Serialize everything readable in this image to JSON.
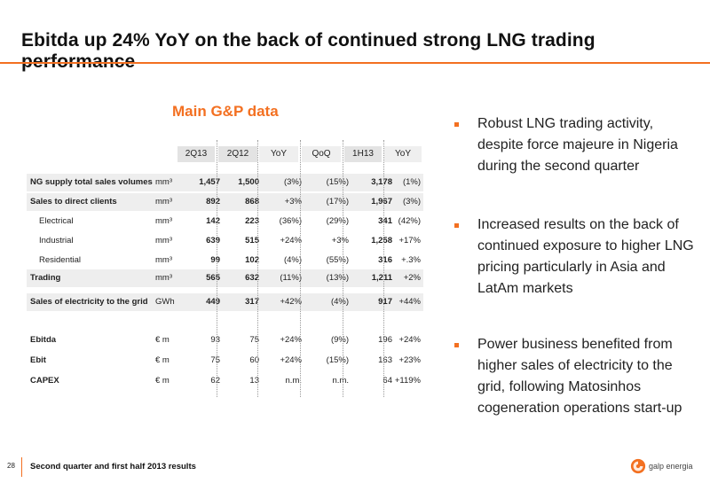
{
  "title": "Ebitda up 24% YoY on the back of continued strong LNG trading performance",
  "table": {
    "heading": "Main G&P data",
    "columns": [
      "2Q13",
      "2Q12",
      "YoY",
      "QoQ",
      "1H13",
      "YoY"
    ],
    "rows": [
      {
        "label": "NG supply total sales volumes",
        "unit": "mm³",
        "v": [
          "1,457",
          "1,500",
          "(3%)",
          "(15%)",
          "3,178",
          "(1%)"
        ]
      },
      {
        "label": "Sales to direct clients",
        "unit": "mm³",
        "v": [
          "892",
          "868",
          "+3%",
          "(17%)",
          "1,967",
          "(3%)"
        ]
      },
      {
        "label": "Electrical",
        "unit": "mm³",
        "v": [
          "142",
          "223",
          "(36%)",
          "(29%)",
          "341",
          "(42%)"
        ]
      },
      {
        "label": "Industrial",
        "unit": "mm³",
        "v": [
          "639",
          "515",
          "+24%",
          "+3%",
          "1,258",
          "+17%"
        ]
      },
      {
        "label": "Residential",
        "unit": "mm³",
        "v": [
          "99",
          "102",
          "(4%)",
          "(55%)",
          "316",
          "+.3%"
        ]
      },
      {
        "label": "Trading",
        "unit": "mm³",
        "v": [
          "565",
          "632",
          "(11%)",
          "(13%)",
          "1,211",
          "+2%"
        ]
      },
      {
        "label": "Sales of electricity to the grid",
        "unit": "GWh",
        "v": [
          "449",
          "317",
          "+42%",
          "(4%)",
          "917",
          "+44%"
        ]
      },
      {
        "label": "Ebitda",
        "unit": "€ m",
        "v": [
          "93",
          "75",
          "+24%",
          "(9%)",
          "196",
          "+24%"
        ]
      },
      {
        "label": "Ebit",
        "unit": "€ m",
        "v": [
          "75",
          "60",
          "+24%",
          "(15%)",
          "163",
          "+23%"
        ]
      },
      {
        "label": "CAPEX",
        "unit": "€ m",
        "v": [
          "62",
          "13",
          "n.m.",
          "n.m.",
          "64",
          "+119%"
        ]
      }
    ]
  },
  "bullets": [
    "Robust LNG trading activity, despite force majeure in Nigeria during the second quarter",
    "Increased results on the back of continued exposure to higher LNG pricing particularly in Asia and LatAm markets",
    "Power business benefited from higher sales of electricity to the grid, following Matosinhos cogeneration operations start-up"
  ],
  "footer": {
    "page": "28",
    "text": "Second quarter and first half 2013 results",
    "brand": "galp energia"
  },
  "colors": {
    "accent": "#f37021",
    "header_shade": "#e3e3e3",
    "row_shade": "#eeeeee"
  }
}
